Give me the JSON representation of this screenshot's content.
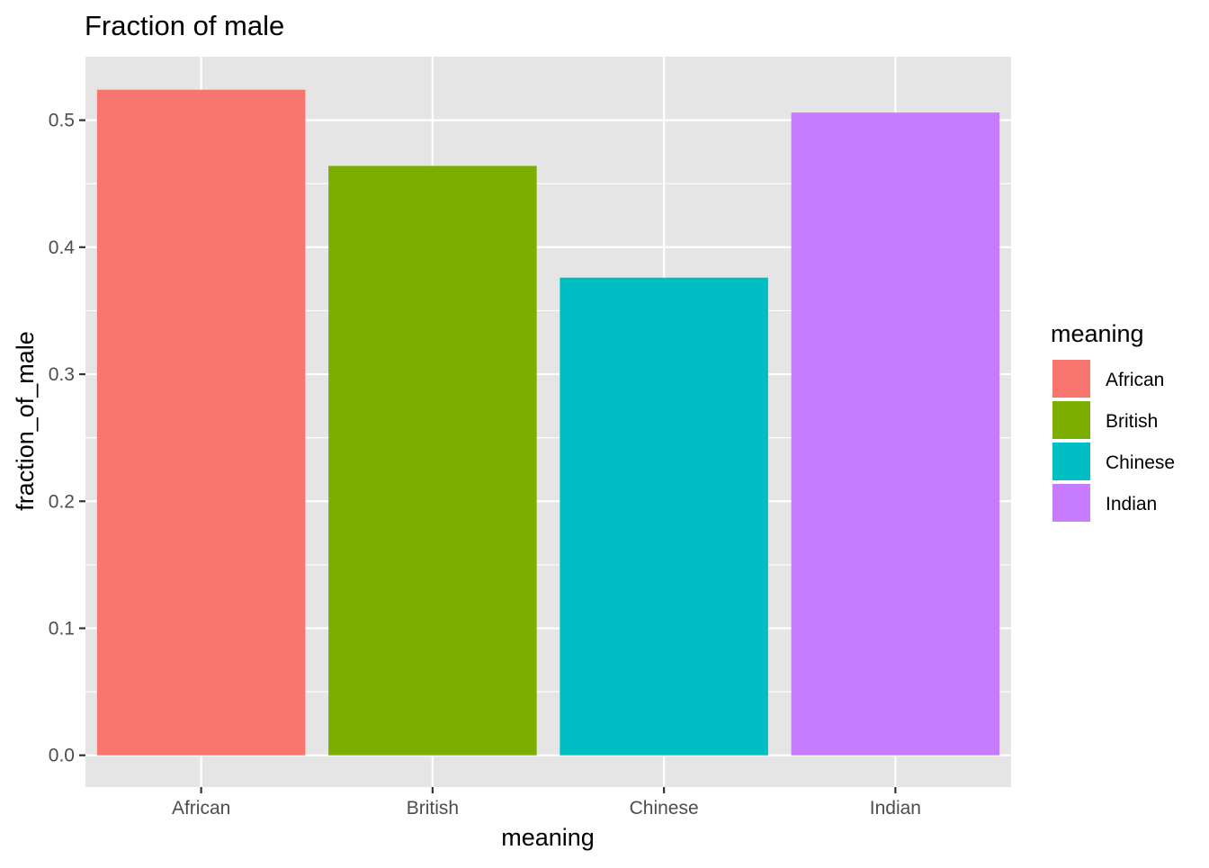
{
  "chart_data": {
    "type": "bar",
    "title": "Fraction of male",
    "xlabel": "meaning",
    "ylabel": "fraction_of_male",
    "categories": [
      "African",
      "British",
      "Chinese",
      "Indian"
    ],
    "values": [
      0.524,
      0.464,
      0.376,
      0.506
    ],
    "colors": [
      "#F8766D",
      "#7CAE00",
      "#00BFC4",
      "#C77CFF"
    ],
    "ylim": [
      -0.025,
      0.55
    ],
    "y_ticks": [
      0.0,
      0.1,
      0.2,
      0.3,
      0.4,
      0.5
    ],
    "y_tick_labels": [
      "0.0",
      "0.1",
      "0.2",
      "0.3",
      "0.4",
      "0.5"
    ],
    "grid": true,
    "legend": {
      "title": "meaning",
      "placement": "right",
      "entries": [
        "African",
        "British",
        "Chinese",
        "Indian"
      ]
    },
    "panel_background": "#E5E5E5",
    "grid_color": "#FFFFFF"
  }
}
